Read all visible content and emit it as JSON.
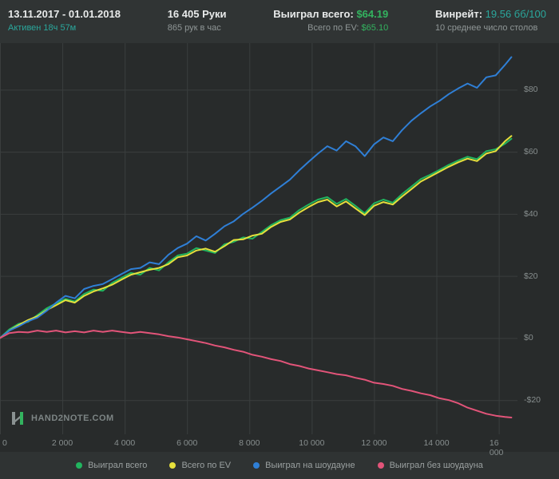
{
  "header": {
    "date_range": "13.11.2017 - 01.01.2018",
    "active_label": "Активен 18ч 57м",
    "hands": "16 405 Руки",
    "hands_per_hour": "865 рук в час",
    "won_total_label": "Выиграл всего:",
    "won_total_value": "$64.19",
    "ev_total_label": "Всего по EV:",
    "ev_total_value": "$65.10",
    "winrate_label": "Винрейт:",
    "winrate_value": "19.56 бб/100",
    "avg_tables": "10 среднее число столов"
  },
  "logo": {
    "text": "HAND2NOTE.COM"
  },
  "legend": [
    {
      "label": "Выиграл всего",
      "color": "#21b55f"
    },
    {
      "label": "Всего по EV",
      "color": "#e6e03c"
    },
    {
      "label": "Выиграл на шоудауне",
      "color": "#2f7fd6"
    },
    {
      "label": "Выиграл без шоудауна",
      "color": "#e25479"
    }
  ],
  "chart_data": {
    "type": "line",
    "title": "",
    "xlabel": "",
    "ylabel": "",
    "xlim": [
      0,
      16600
    ],
    "ylim": [
      -31,
      95
    ],
    "grid": true,
    "grid_color": "#3a3e3e",
    "legend_position": "bottom",
    "x_ticks": [
      {
        "value": 0,
        "label": "0"
      },
      {
        "value": 2000,
        "label": "2 000"
      },
      {
        "value": 4000,
        "label": "4 000"
      },
      {
        "value": 6000,
        "label": "6 000"
      },
      {
        "value": 8000,
        "label": "8 000"
      },
      {
        "value": 10000,
        "label": "10 000"
      },
      {
        "value": 12000,
        "label": "12 000"
      },
      {
        "value": 14000,
        "label": "14 000"
      },
      {
        "value": 16000,
        "label": "16 000"
      }
    ],
    "y_ticks": [
      {
        "value": 80,
        "label": "$80"
      },
      {
        "value": 60,
        "label": "$60"
      },
      {
        "value": 40,
        "label": "$40"
      },
      {
        "value": 20,
        "label": "$20"
      },
      {
        "value": 0,
        "label": "$0"
      },
      {
        "value": -20,
        "label": "-$20"
      }
    ],
    "x": [
      0,
      300,
      600,
      900,
      1200,
      1500,
      1800,
      2100,
      2400,
      2700,
      3000,
      3300,
      3600,
      3900,
      4200,
      4500,
      4800,
      5100,
      5400,
      5700,
      6000,
      6300,
      6600,
      6900,
      7200,
      7500,
      7800,
      8100,
      8400,
      8700,
      9000,
      9300,
      9600,
      9900,
      10200,
      10500,
      10800,
      11100,
      11400,
      11700,
      12000,
      12300,
      12600,
      12900,
      13200,
      13500,
      13800,
      14100,
      14400,
      14700,
      15000,
      15300,
      15600,
      15900,
      16200,
      16405
    ],
    "series": [
      {
        "name": "Выиграл всего",
        "key": "total-won",
        "color": "#21b55f",
        "final_value": 64.19,
        "values": [
          0,
          2.8,
          4.6,
          5.2,
          7.4,
          9.6,
          11.2,
          12.6,
          11.8,
          14.2,
          15.6,
          15.2,
          17.8,
          19.4,
          21.0,
          20.4,
          22.6,
          21.8,
          24.4,
          26.6,
          27.2,
          29.0,
          28.2,
          27.4,
          30.2,
          31.0,
          32.4,
          32.0,
          34.2,
          36.4,
          38.0,
          38.8,
          41.2,
          43.0,
          44.6,
          45.4,
          43.2,
          44.8,
          42.6,
          40.2,
          43.4,
          44.6,
          43.6,
          46.4,
          48.8,
          51.2,
          52.6,
          54.2,
          55.8,
          57.2,
          58.4,
          57.6,
          60.2,
          60.8,
          62.6,
          64.19
        ]
      },
      {
        "name": "Всего по EV",
        "key": "ev-total",
        "color": "#e6e03c",
        "final_value": 65.1,
        "values": [
          0,
          2.4,
          4.2,
          5.8,
          7.0,
          9.0,
          10.6,
          12.2,
          11.4,
          13.6,
          15.0,
          16.0,
          17.2,
          18.8,
          20.4,
          21.2,
          22.0,
          22.6,
          23.8,
          26.0,
          26.6,
          28.2,
          28.8,
          27.8,
          29.6,
          31.6,
          31.8,
          33.0,
          33.6,
          35.8,
          37.4,
          38.2,
          40.4,
          42.2,
          43.8,
          44.6,
          42.4,
          44.0,
          41.8,
          39.6,
          42.6,
          43.8,
          43.0,
          45.6,
          48.0,
          50.4,
          52.0,
          53.6,
          55.2,
          56.6,
          57.8,
          57.0,
          59.4,
          60.2,
          63.4,
          65.1
        ]
      },
      {
        "name": "Выиграл на шоудауне",
        "key": "showdown-won",
        "color": "#2f7fd6",
        "final_value": 90.5,
        "values": [
          0,
          2.4,
          3.8,
          5.4,
          6.6,
          8.8,
          11.4,
          13.6,
          12.8,
          15.8,
          16.8,
          17.4,
          19.0,
          20.6,
          22.2,
          22.6,
          24.4,
          23.8,
          26.8,
          29.0,
          30.4,
          32.8,
          31.4,
          33.6,
          36.0,
          37.6,
          40.0,
          42.0,
          44.2,
          46.6,
          48.8,
          51.0,
          54.0,
          56.8,
          59.4,
          61.8,
          60.4,
          63.4,
          61.8,
          58.6,
          62.4,
          64.6,
          63.4,
          67.0,
          70.0,
          72.4,
          74.6,
          76.4,
          78.6,
          80.4,
          82.0,
          80.6,
          84.0,
          84.6,
          88.0,
          90.5
        ]
      },
      {
        "name": "Выиграл без шоудауна",
        "key": "non-showdown-won",
        "color": "#e25479",
        "final_value": -25.6,
        "values": [
          0,
          1.6,
          2.0,
          1.8,
          2.4,
          2.0,
          2.4,
          1.8,
          2.2,
          1.8,
          2.4,
          2.0,
          2.4,
          2.0,
          1.6,
          2.0,
          1.6,
          1.2,
          0.6,
          0.2,
          -0.4,
          -1.0,
          -1.6,
          -2.4,
          -3.0,
          -3.8,
          -4.4,
          -5.4,
          -6.0,
          -6.8,
          -7.4,
          -8.4,
          -9.0,
          -9.8,
          -10.4,
          -11.0,
          -11.6,
          -12.0,
          -12.8,
          -13.4,
          -14.4,
          -14.8,
          -15.4,
          -16.4,
          -17.0,
          -17.8,
          -18.4,
          -19.4,
          -20.0,
          -21.0,
          -22.4,
          -23.4,
          -24.4,
          -25.0,
          -25.4,
          -25.6
        ]
      }
    ]
  }
}
